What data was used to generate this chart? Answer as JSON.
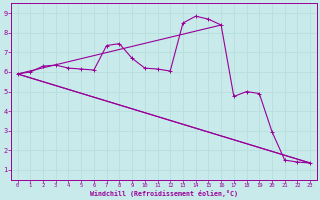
{
  "bg_color": "#c8eaea",
  "line_color": "#990099",
  "grid_color": "#b8dede",
  "xlabel": "Windchill (Refroidissement éolien,°C)",
  "xlabel_color": "#990099",
  "tick_color": "#990099",
  "xlim": [
    -0.5,
    23.5
  ],
  "ylim": [
    0.5,
    9.5
  ],
  "yticks": [
    1,
    2,
    3,
    4,
    5,
    6,
    7,
    8,
    9
  ],
  "xticks": [
    0,
    1,
    2,
    3,
    4,
    5,
    6,
    7,
    8,
    9,
    10,
    11,
    12,
    13,
    14,
    15,
    16,
    17,
    18,
    19,
    20,
    21,
    22,
    23
  ],
  "series_main": {
    "x": [
      0,
      1,
      2,
      3,
      4,
      5,
      6,
      7,
      8,
      9,
      10,
      11,
      12,
      13,
      14,
      15,
      16,
      17,
      18,
      19,
      20,
      21,
      22,
      23
    ],
    "y": [
      5.9,
      6.0,
      6.3,
      6.35,
      6.2,
      6.15,
      6.1,
      7.35,
      7.45,
      6.7,
      6.2,
      6.15,
      6.05,
      8.5,
      8.85,
      8.7,
      8.4,
      4.75,
      5.0,
      4.9,
      2.95,
      1.5,
      1.4,
      1.35
    ]
  },
  "series_line1": {
    "x": [
      0,
      23
    ],
    "y": [
      5.9,
      1.35
    ]
  },
  "series_line2": {
    "x": [
      0,
      16
    ],
    "y": [
      5.9,
      8.4
    ]
  },
  "series_line3": {
    "x": [
      0,
      23
    ],
    "y": [
      5.9,
      1.35
    ]
  }
}
